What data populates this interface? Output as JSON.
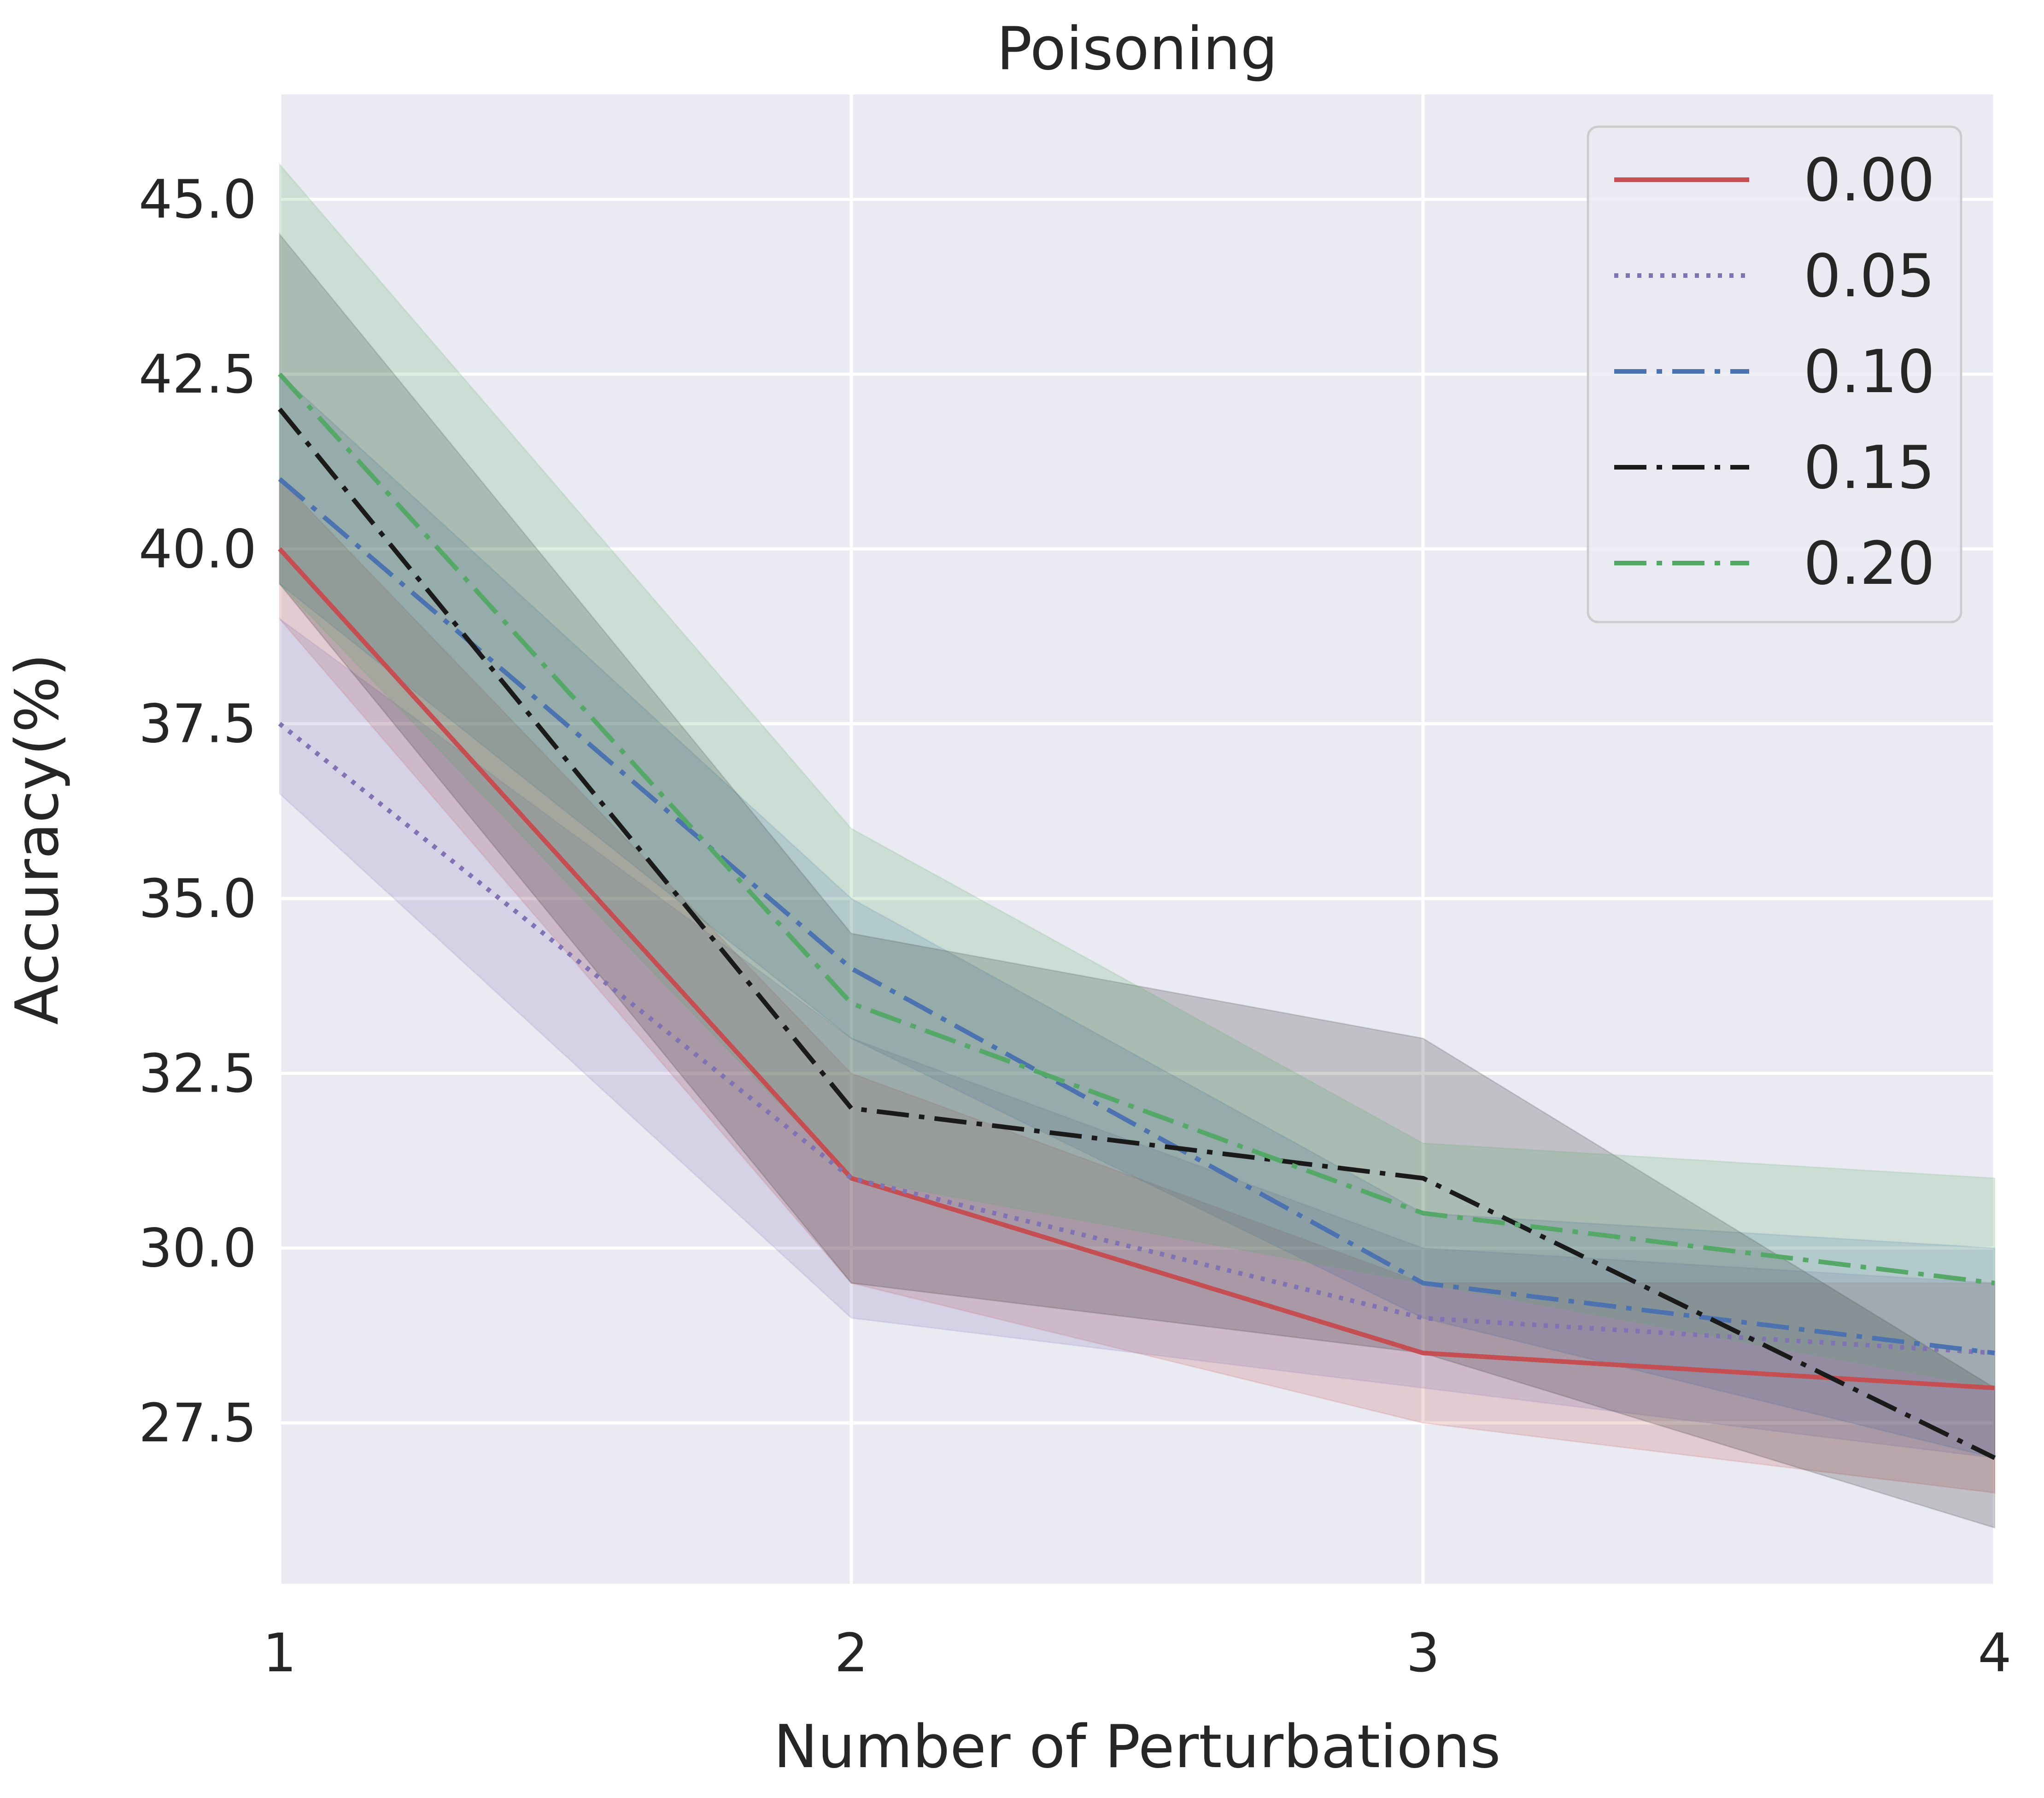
{
  "chart_data": {
    "type": "line",
    "title": "Poisoning",
    "xlabel": "Number of Perturbations",
    "ylabel": "Accuracy(%)",
    "x": [
      1,
      2,
      3,
      4
    ],
    "xticks": [
      "1",
      "2",
      "3",
      "4"
    ],
    "yticks": [
      "27.5",
      "30.0",
      "32.5",
      "35.0",
      "37.5",
      "40.0",
      "42.5",
      "45.0"
    ],
    "xlim": [
      1,
      4
    ],
    "ylim": [
      25.2,
      46.5
    ],
    "grid": true,
    "legend_position": "top-right",
    "series": [
      {
        "name": "0.00",
        "color": "#c44e52",
        "style": "solid",
        "values": [
          40.0,
          31.0,
          28.5,
          28.0
        ],
        "lower": [
          39.0,
          29.5,
          27.5,
          26.5
        ],
        "upper": [
          41.0,
          32.5,
          29.5,
          29.5
        ]
      },
      {
        "name": "0.05",
        "color": "#8172b3",
        "style": "dotted",
        "values": [
          37.5,
          31.0,
          29.0,
          28.5
        ],
        "lower": [
          36.5,
          29.0,
          28.0,
          27.0
        ],
        "upper": [
          39.0,
          33.0,
          30.0,
          29.5
        ]
      },
      {
        "name": "0.10",
        "color": "#4c72b0",
        "style": "dashdot",
        "values": [
          41.0,
          34.0,
          29.5,
          28.5
        ],
        "lower": [
          39.5,
          33.0,
          29.0,
          27.0
        ],
        "upper": [
          42.5,
          35.0,
          30.5,
          30.0
        ]
      },
      {
        "name": "0.15",
        "color": "#1a1a1a",
        "style": "dashdot",
        "values": [
          42.0,
          32.0,
          31.0,
          27.0
        ],
        "lower": [
          39.5,
          29.5,
          28.5,
          26.0
        ],
        "upper": [
          44.5,
          34.5,
          33.0,
          28.0
        ]
      },
      {
        "name": "0.20",
        "color": "#55a868",
        "style": "dashdot",
        "values": [
          42.5,
          33.5,
          30.5,
          29.5
        ],
        "lower": [
          39.5,
          31.0,
          29.5,
          28.0
        ],
        "upper": [
          45.5,
          36.0,
          31.5,
          31.0
        ]
      }
    ]
  }
}
